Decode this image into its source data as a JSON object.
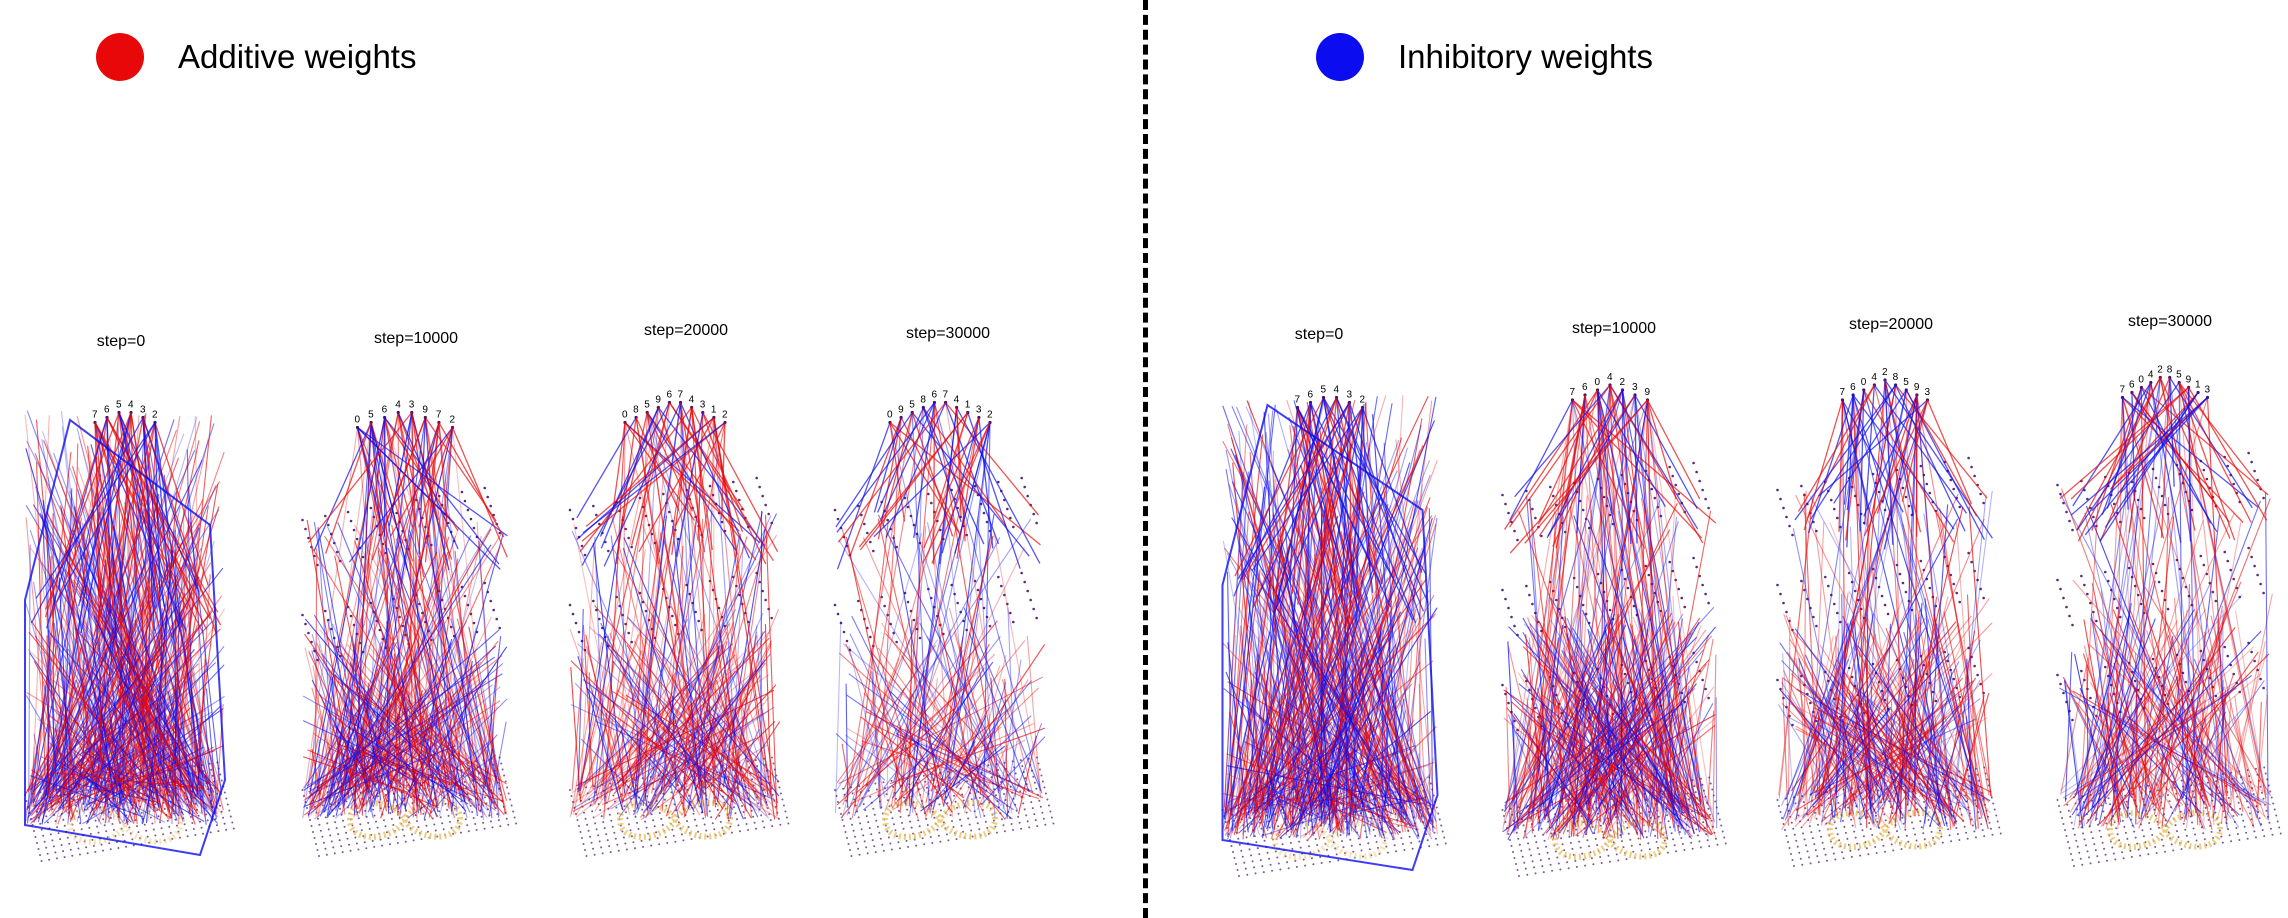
{
  "legend": {
    "additive": {
      "label": "Additive weights",
      "color": "#e8080a"
    },
    "inhibitory": {
      "label": "Inhibitory weights",
      "color": "#0c0cf0"
    }
  },
  "panels": {
    "left": {
      "steps": [
        "step=0",
        "step=10000",
        "step=20000",
        "step=30000"
      ]
    },
    "right": {
      "steps": [
        "step=0",
        "step=10000",
        "step=20000",
        "step=30000"
      ]
    }
  },
  "columns": [
    [
      "7",
      "6",
      "5",
      "4",
      "3",
      "2"
    ],
    [
      "0",
      "5",
      "6",
      "4",
      "3",
      "9",
      "7",
      "2"
    ],
    [
      "0",
      "8",
      "5",
      "9",
      "6",
      "7",
      "4",
      "3",
      "1",
      "2"
    ],
    [
      "0",
      "9",
      "5",
      "8",
      "6",
      "7",
      "4",
      "1",
      "3",
      "2"
    ],
    [
      "7",
      "6",
      "5",
      "4",
      "3",
      "2"
    ],
    [
      "7",
      "6",
      "0",
      "4",
      "2",
      "3",
      "9"
    ],
    [
      "7",
      "6",
      "0",
      "4",
      "2",
      "8",
      "5",
      "9",
      "3"
    ],
    [
      "7",
      "6",
      "0",
      "4",
      "2",
      "8",
      "5",
      "9",
      "1",
      "3"
    ]
  ],
  "colors": {
    "node": "#3a1a5a",
    "grid": "#5a2a7a",
    "pattern": "#e8c060"
  }
}
